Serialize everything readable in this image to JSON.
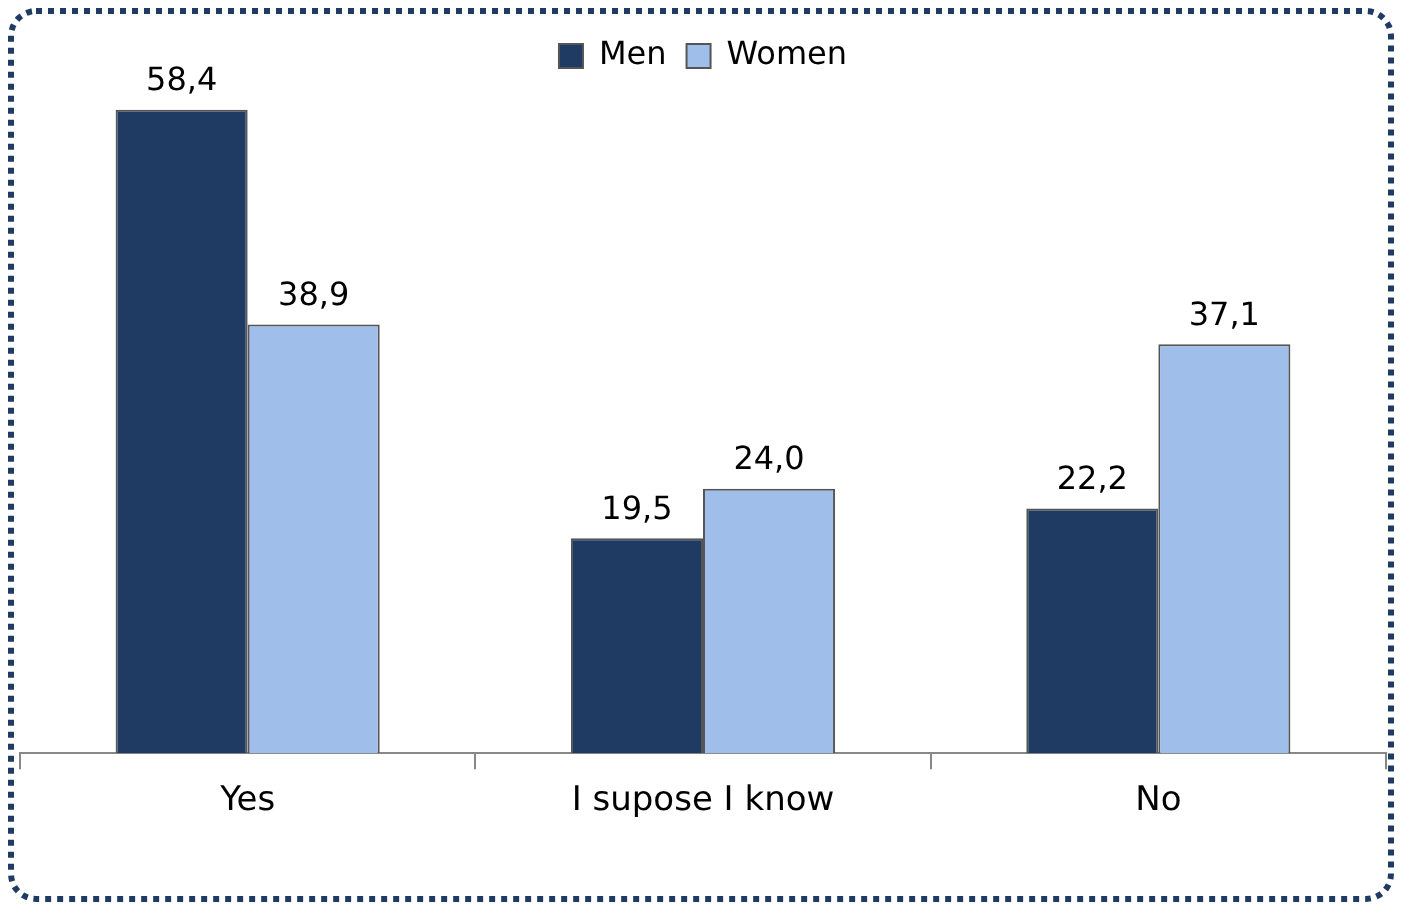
{
  "chart_data": {
    "type": "bar",
    "categories": [
      "Yes",
      "I supose I know",
      "No"
    ],
    "series": [
      {
        "name": "Men",
        "color": "#1f3b63",
        "values": [
          58.4,
          19.5,
          22.2
        ],
        "value_labels": [
          "58,4",
          "19,5",
          "22,2"
        ]
      },
      {
        "name": "Women",
        "color": "#9fbfea",
        "values": [
          38.9,
          24.0,
          37.1
        ],
        "value_labels": [
          "38,9",
          "24,0",
          "37,1"
        ]
      }
    ],
    "legend": "top",
    "grid": false
  }
}
